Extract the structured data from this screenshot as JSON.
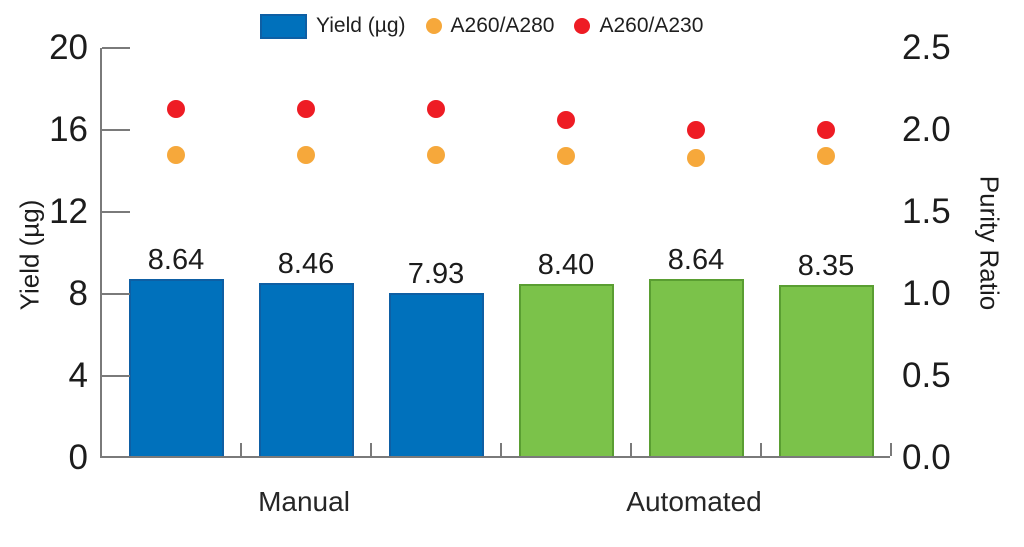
{
  "colors": {
    "bar_blue": "#0071BC",
    "bar_blue_border": "#0E5FA4",
    "bar_green": "#7BC24A",
    "bar_green_border": "#5A9E32",
    "dot_orange": "#F6A83B",
    "dot_red": "#EE1C24",
    "axis_gray": "#7A7A7A",
    "text": "#1C1C1C"
  },
  "chart_data": {
    "type": "bar",
    "title": "",
    "legend": [
      {
        "label": "Yield (µg)",
        "marker": "square",
        "color_key": "bar_blue"
      },
      {
        "label": "A260/A280",
        "marker": "dot",
        "color_key": "dot_orange"
      },
      {
        "label": "A260/A230",
        "marker": "dot",
        "color_key": "dot_red"
      }
    ],
    "groups": [
      {
        "label": "Manual",
        "bar_indexes": [
          0,
          1,
          2
        ]
      },
      {
        "label": "Automated",
        "bar_indexes": [
          3,
          4,
          5
        ]
      }
    ],
    "bars": {
      "name": "Yield (µg)",
      "axis": "left",
      "values": [
        8.64,
        8.46,
        7.93,
        8.4,
        8.64,
        8.35
      ],
      "labels": [
        "8.64",
        "8.46",
        "7.93",
        "8.40",
        "8.64",
        "8.35"
      ],
      "group_of_bar": [
        0,
        0,
        0,
        1,
        1,
        1
      ]
    },
    "series": [
      {
        "name": "A260/A280",
        "type": "scatter",
        "axis": "right",
        "color_key": "dot_orange",
        "values": [
          1.85,
          1.85,
          1.85,
          1.84,
          1.83,
          1.84
        ]
      },
      {
        "name": "A260/A230",
        "type": "scatter",
        "axis": "right",
        "color_key": "dot_red",
        "values": [
          2.13,
          2.13,
          2.13,
          2.06,
          2.0,
          2.0
        ]
      }
    ],
    "left_axis": {
      "label": "Yield (µg)",
      "range": [
        0,
        20
      ],
      "ticks": [
        "0",
        "4",
        "8",
        "12",
        "16",
        "20"
      ]
    },
    "right_axis": {
      "label": "Purity Ratio",
      "range": [
        0,
        2.5
      ],
      "ticks": [
        "0.0",
        "0.5",
        "1.0",
        "1.5",
        "2.0",
        "2.5"
      ]
    },
    "grid": "off",
    "legend_position": "top"
  }
}
